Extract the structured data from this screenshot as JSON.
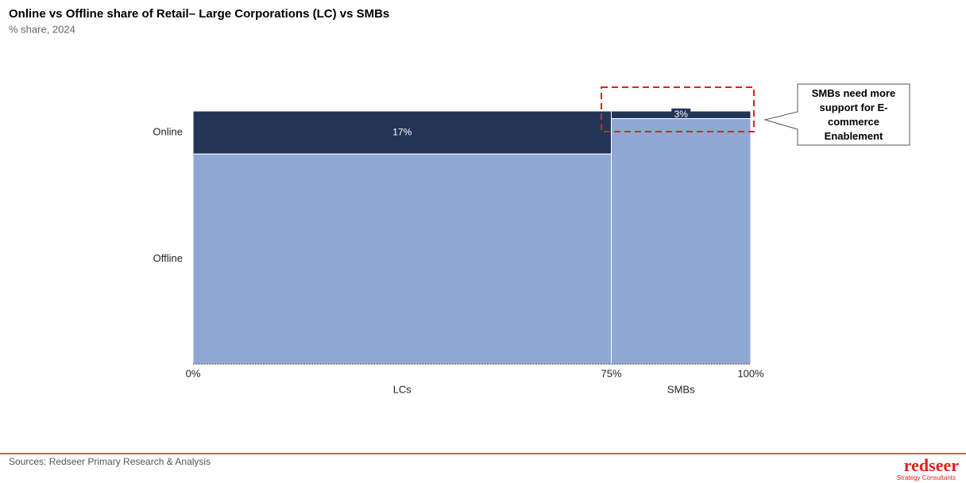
{
  "chart_data": {
    "type": "mekko",
    "title": "Online vs Offline share of Retail– Large Corporations (LC) vs SMBs",
    "subtitle": "% share, 2024",
    "categories": [
      "LCs",
      "SMBs"
    ],
    "widths": [
      75,
      25
    ],
    "xlim": [
      0,
      100
    ],
    "xticks": [
      {
        "value": 0,
        "label": "0%"
      },
      {
        "value": 75,
        "label": "75%"
      },
      {
        "value": 100,
        "label": "100%"
      }
    ],
    "ylim": [
      0,
      100
    ],
    "series": [
      {
        "name": "Online",
        "color": "#223556",
        "values": [
          17,
          3
        ],
        "value_labels": [
          "17%",
          "3%"
        ]
      },
      {
        "name": "Offline",
        "color": "#8fa7d3",
        "values": [
          83,
          97
        ]
      }
    ],
    "annotation": "SMBs need more support for E-commerce Enablement",
    "source": "Sources: Redseer Primary Research & Analysis",
    "logo": "redseer",
    "logo_tagline": "Strategy Consultants"
  }
}
